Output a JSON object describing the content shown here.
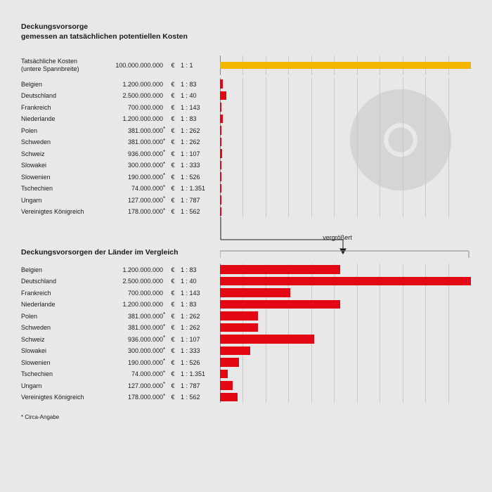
{
  "title_line1": "Deckungsvorsorge",
  "title_line2": "gemessen an tatsächlichen potentiellen Kosten",
  "reference": {
    "label_line1": "Tatsächliche Kosten",
    "label_line2": "(untere Spannbreite)",
    "amount": "100.000.000.000",
    "currency": "€",
    "ratio": "1 : 1",
    "value": 100000000000,
    "bar_color": "#f2b600"
  },
  "section2_title": "Deckungsvorsorgen der Länder im Vergleich",
  "enlarge_label": "vergrößert",
  "footnote": "* Circa-Angabe",
  "colors": {
    "bar": "#e30613",
    "grid": "#c8c8c8",
    "background": "#e8e8e8",
    "trefoil": "#b3b3b3"
  },
  "grid_divisions": 10,
  "countries": [
    {
      "name": "Belgien",
      "amount": "1.200.000.000",
      "star": false,
      "currency": "€",
      "ratio": "1 : 83",
      "value": 1200000000
    },
    {
      "name": "Deutschland",
      "amount": "2.500.000.000",
      "star": false,
      "currency": "€",
      "ratio": "1 : 40",
      "value": 2500000000
    },
    {
      "name": "Frankreich",
      "amount": "700.000.000",
      "star": false,
      "currency": "€",
      "ratio": "1 : 143",
      "value": 700000000
    },
    {
      "name": "Niederlande",
      "amount": "1.200.000.000",
      "star": false,
      "currency": "€",
      "ratio": "1 : 83",
      "value": 1200000000
    },
    {
      "name": "Polen",
      "amount": "381.000.000",
      "star": true,
      "currency": "€",
      "ratio": "1 : 262",
      "value": 381000000
    },
    {
      "name": "Schweden",
      "amount": "381.000.000",
      "star": true,
      "currency": "€",
      "ratio": "1 : 262",
      "value": 381000000
    },
    {
      "name": "Schweiz",
      "amount": "936.000.000",
      "star": true,
      "currency": "€",
      "ratio": "1 : 107",
      "value": 936000000
    },
    {
      "name": "Slowakei",
      "amount": "300.000.000",
      "star": true,
      "currency": "€",
      "ratio": "1 : 333",
      "value": 300000000
    },
    {
      "name": "Slowenien",
      "amount": "190.000.000",
      "star": true,
      "currency": "€",
      "ratio": "1 : 526",
      "value": 190000000
    },
    {
      "name": "Tschechien",
      "amount": "74.000.000",
      "star": true,
      "currency": "€",
      "ratio": "1 : 1.351",
      "value": 74000000
    },
    {
      "name": "Ungarn",
      "amount": "127.000.000",
      "star": true,
      "currency": "€",
      "ratio": "1 : 787",
      "value": 127000000
    },
    {
      "name": "Vereinigtes Königreich",
      "amount": "178.000.000",
      "star": true,
      "currency": "€",
      "ratio": "1 : 562",
      "value": 178000000
    }
  ],
  "top_chart_max": 100000000000,
  "bottom_chart_max": 2500000000
}
